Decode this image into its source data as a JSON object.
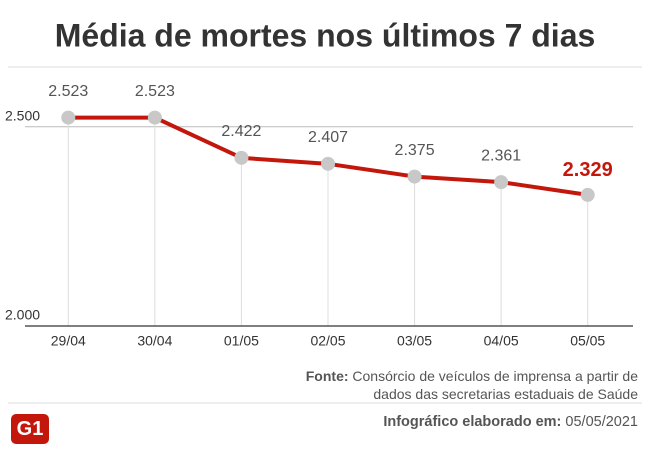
{
  "chart_data": {
    "type": "line",
    "title": "Média de mortes nos últimos 7 dias",
    "categories": [
      "29/04",
      "30/04",
      "01/05",
      "02/05",
      "03/05",
      "04/05",
      "05/05"
    ],
    "values": [
      2523,
      2523,
      2422,
      2407,
      2375,
      2361,
      2329
    ],
    "value_labels": [
      "2.523",
      "2.523",
      "2.422",
      "2.407",
      "2.375",
      "2.361",
      "2.329"
    ],
    "color": "#c4170c",
    "marker_color": "#c8c8c8",
    "highlight_color": "#c4170c",
    "ylim": [
      2000,
      2650
    ],
    "yticks": [
      {
        "value": 2000,
        "label": "2.000"
      },
      {
        "value": 2500,
        "label": "2.500"
      }
    ],
    "grid": true
  },
  "source_label": "Fonte:",
  "source_text": "Consórcio de veículos de imprensa a partir de dados das secretarias estaduais de Saúde",
  "footer_label": "Infográfico elaborado em:",
  "footer_date": "05/05/2021",
  "logo": "G1"
}
